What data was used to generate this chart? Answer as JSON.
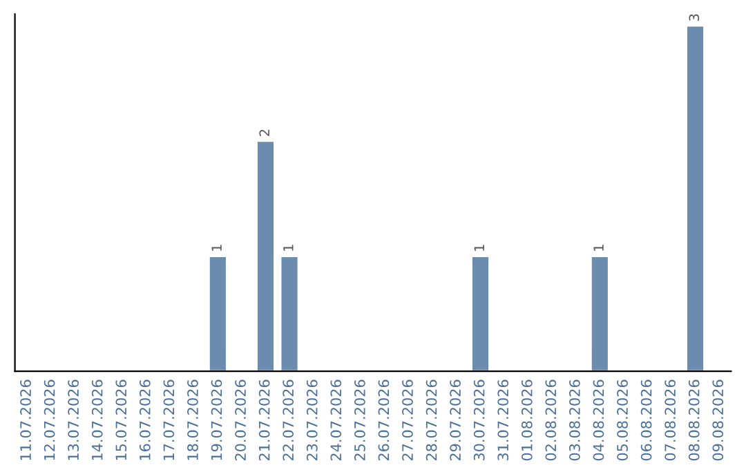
{
  "chart_data": {
    "type": "bar",
    "categories": [
      "11.07.2026",
      "12.07.2026",
      "13.07.2026",
      "14.07.2026",
      "15.07.2026",
      "16.07.2026",
      "17.07.2026",
      "18.07.2026",
      "19.07.2026",
      "20.07.2026",
      "21.07.2026",
      "22.07.2026",
      "23.07.2026",
      "24.07.2026",
      "25.07.2026",
      "26.07.2026",
      "27.07.2026",
      "28.07.2026",
      "29.07.2026",
      "30.07.2026",
      "31.07.2026",
      "01.08.2026",
      "02.08.2026",
      "03.08.2026",
      "04.08.2026",
      "05.08.2026",
      "06.08.2026",
      "07.08.2026",
      "08.08.2026",
      "09.08.2026"
    ],
    "values": [
      null,
      null,
      null,
      null,
      null,
      null,
      null,
      null,
      1,
      null,
      2,
      1,
      null,
      null,
      null,
      null,
      null,
      null,
      null,
      1,
      null,
      null,
      null,
      null,
      1,
      null,
      null,
      null,
      3,
      null
    ],
    "value_labels": [
      null,
      null,
      null,
      null,
      null,
      null,
      null,
      null,
      "1",
      null,
      "2",
      "1",
      null,
      null,
      null,
      null,
      null,
      null,
      null,
      "1",
      null,
      null,
      null,
      null,
      "1",
      null,
      null,
      null,
      "3",
      null
    ],
    "color": "#6b8cae",
    "ylim": [
      0,
      3.1
    ],
    "tick_labels": "x",
    "grid": false,
    "legend": false
  }
}
